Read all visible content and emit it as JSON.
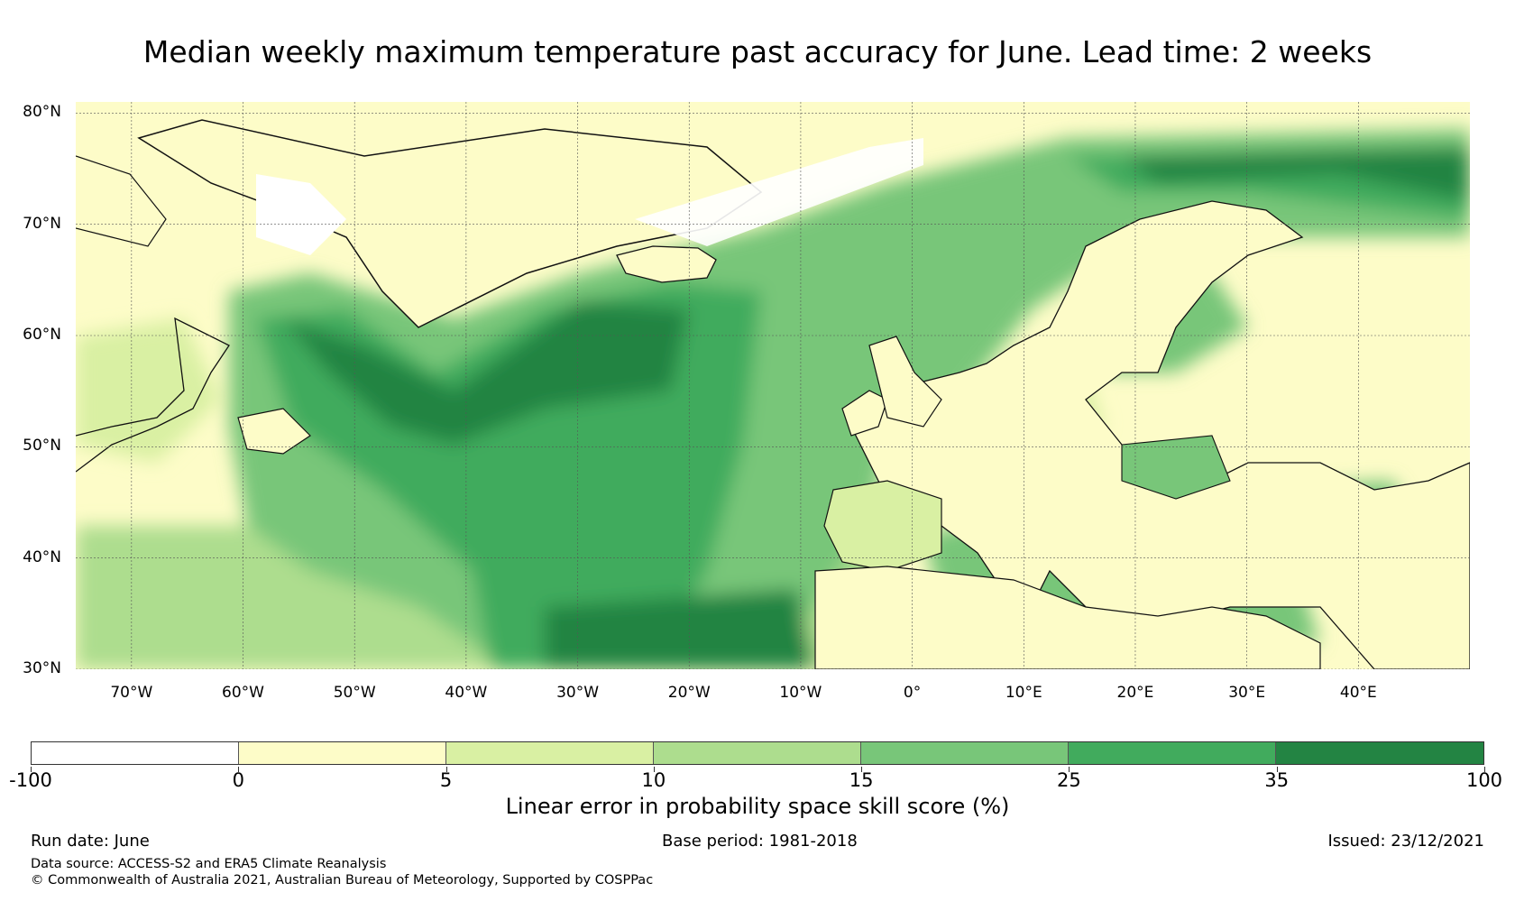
{
  "title": "Median weekly maximum temperature past accuracy for June. Lead time: 2 weeks",
  "map": {
    "extent": {
      "lon": [
        -75,
        50
      ],
      "lat": [
        30,
        81
      ]
    },
    "lat_labels": [
      "80°N",
      "70°N",
      "60°N",
      "50°N",
      "40°N",
      "30°N"
    ],
    "lat_values": [
      80,
      70,
      60,
      50,
      40,
      30
    ],
    "lon_labels": [
      "70°W",
      "60°W",
      "50°W",
      "40°W",
      "30°W",
      "20°W",
      "10°W",
      "0°",
      "10°E",
      "20°E",
      "30°E",
      "40°E"
    ],
    "lon_values": [
      -70,
      -60,
      -50,
      -40,
      -30,
      -20,
      -10,
      0,
      10,
      20,
      30,
      40
    ],
    "gridlines": true
  },
  "colorbar": {
    "boundaries": [
      "-100",
      "0",
      "5",
      "10",
      "15",
      "25",
      "35",
      "100"
    ],
    "colors": [
      "#ffffff",
      "#fdfcc8",
      "#d9f0a3",
      "#addd8e",
      "#78c679",
      "#41ab5d",
      "#238443"
    ],
    "label": "Linear error in probability space skill score (%)"
  },
  "footer": {
    "run_date": "Run date: June",
    "base_period": "Base period: 1981-2018",
    "issued": "Issued: 23/12/2021",
    "data_source": "Data source: ACCESS-S2 and ERA5 Climate Reanalysis",
    "copyright": "© Commonwealth of Australia 2021, Australian Bureau of Meteorology, Supported by COSPPac"
  }
}
